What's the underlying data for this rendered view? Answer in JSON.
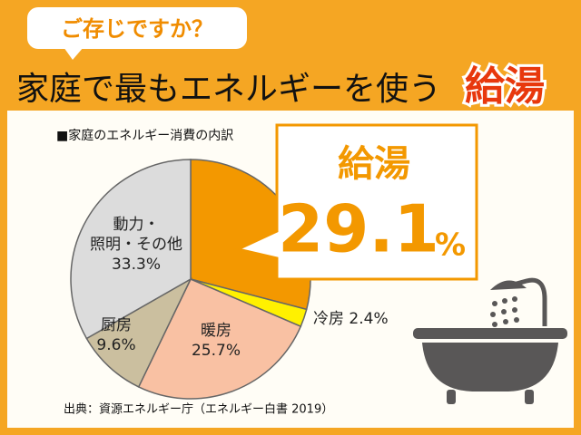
{
  "kicker": "ご存じですか？",
  "headline": {
    "text": "家庭で最もエネルギーを使う",
    "highlight": "給湯"
  },
  "chart_data": {
    "type": "pie",
    "subtitle": "■家庭のエネルギー消費の内訳",
    "categories": [
      "給湯",
      "冷房",
      "暖房",
      "厨房",
      "動力・\n照明・その他"
    ],
    "values": [
      29.1,
      2.4,
      25.7,
      9.6,
      33.3
    ],
    "unit": "%",
    "colors": [
      "#f39800",
      "#fff100",
      "#f9c1a3",
      "#cbbf9f",
      "#dcdcdc"
    ]
  },
  "source": "出典：資源エネルギー庁（エネルギー白書 2019）"
}
